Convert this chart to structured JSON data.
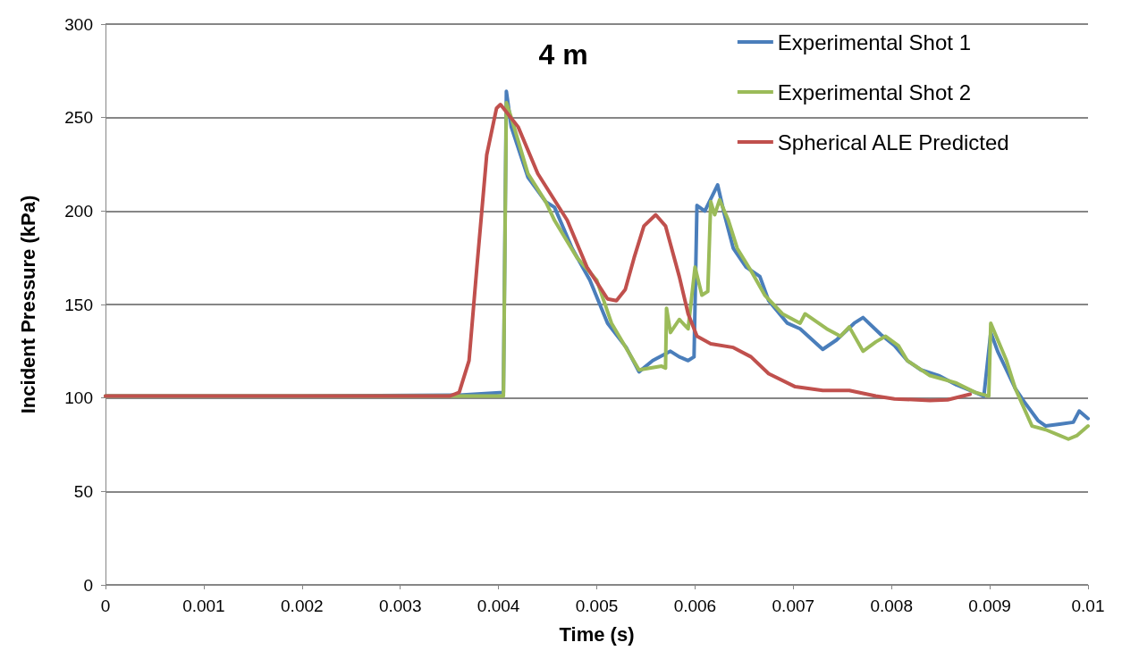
{
  "chart_data": {
    "type": "line",
    "title": "4 m",
    "xlabel": "Time (s)",
    "ylabel": "Incident Pressure (kPa)",
    "xlim": [
      0,
      0.01
    ],
    "xticks": [
      0,
      0.001,
      0.002,
      0.003,
      0.004,
      0.005,
      0.006,
      0.007,
      0.008,
      0.009,
      0.01
    ],
    "ylim": [
      0,
      300
    ],
    "yticks": [
      0,
      50,
      100,
      150,
      200,
      250,
      300
    ],
    "grid": "y",
    "legend": "top right",
    "marker": "none",
    "line_style": "solid",
    "series": [
      {
        "name": "Experimental Shot 1",
        "color": "#4a7ebb",
        "x": [
          0,
          0.002,
          0.0036,
          0.00405,
          0.00408,
          0.00413,
          0.0043,
          0.00448,
          0.00457,
          0.00475,
          0.00493,
          0.00511,
          0.0053,
          0.00543,
          0.00557,
          0.00575,
          0.00584,
          0.00593,
          0.00599,
          0.00602,
          0.0061,
          0.00623,
          0.0063,
          0.00639,
          0.00652,
          0.00666,
          0.00675,
          0.00694,
          0.00707,
          0.0073,
          0.00744,
          0.00762,
          0.00771,
          0.00789,
          0.00803,
          0.00816,
          0.0083,
          0.00848,
          0.00866,
          0.00885,
          0.00894,
          0.00901,
          0.00908,
          0.00917,
          0.00926,
          0.00935,
          0.00949,
          0.00957,
          0.00971,
          0.00985,
          0.00991,
          0.01
        ],
        "values": [
          101,
          101,
          101.5,
          103,
          264,
          245,
          218,
          205,
          202,
          180,
          163,
          140,
          127,
          114,
          120,
          125,
          122,
          120,
          122,
          203,
          200,
          214,
          198,
          180,
          170,
          165,
          152,
          140,
          137,
          126,
          131,
          140,
          143,
          134,
          128,
          120,
          115,
          112,
          107,
          103,
          101,
          135,
          125,
          115,
          105,
          98,
          88,
          85,
          86,
          87,
          93,
          89
        ]
      },
      {
        "name": "Experimental Shot 2",
        "color": "#9bbb59",
        "x": [
          0,
          0.002,
          0.0036,
          0.00405,
          0.00408,
          0.00413,
          0.0043,
          0.00448,
          0.00457,
          0.0048,
          0.005,
          0.00515,
          0.00543,
          0.00566,
          0.0057,
          0.00571,
          0.00575,
          0.00584,
          0.00593,
          0.006,
          0.00607,
          0.00613,
          0.00616,
          0.0062,
          0.00625,
          0.00634,
          0.00643,
          0.00657,
          0.00671,
          0.00689,
          0.00707,
          0.00712,
          0.00734,
          0.00748,
          0.00757,
          0.00771,
          0.00784,
          0.00794,
          0.00807,
          0.00816,
          0.00839,
          0.00866,
          0.00885,
          0.00899,
          0.00901,
          0.00917,
          0.00926,
          0.00943,
          0.00957,
          0.00971,
          0.0098,
          0.00989,
          0.01
        ],
        "values": [
          101,
          101,
          101,
          101,
          258,
          250,
          220,
          205,
          195,
          175,
          163,
          140,
          115,
          117,
          116,
          148,
          135,
          142,
          137,
          170,
          155,
          157,
          205,
          198,
          206,
          195,
          180,
          168,
          155,
          145,
          140,
          145,
          137,
          133,
          138,
          125,
          130,
          133,
          128,
          120,
          112,
          108,
          103,
          101,
          140,
          120,
          105,
          85,
          83,
          80,
          78,
          80,
          85
        ]
      },
      {
        "name": "Spherical ALE Predicted",
        "color": "#c0504d",
        "x": [
          0,
          0.002,
          0.0035,
          0.0036,
          0.0037,
          0.00378,
          0.00388,
          0.00398,
          0.00402,
          0.0042,
          0.0044,
          0.0047,
          0.0049,
          0.00511,
          0.0052,
          0.00529,
          0.00538,
          0.00548,
          0.0056,
          0.0057,
          0.00584,
          0.00593,
          0.00602,
          0.00616,
          0.00639,
          0.00657,
          0.00675,
          0.00702,
          0.0073,
          0.00757,
          0.00784,
          0.00803,
          0.00839,
          0.00857,
          0.0088
        ],
        "values": [
          101,
          101,
          101,
          103,
          120,
          170,
          230,
          255,
          257,
          245,
          220,
          195,
          170,
          153,
          152,
          158,
          175,
          192,
          198,
          192,
          165,
          145,
          133,
          129,
          127,
          122,
          113,
          106,
          104,
          104,
          101,
          99.5,
          98.7,
          99,
          102
        ]
      }
    ]
  }
}
